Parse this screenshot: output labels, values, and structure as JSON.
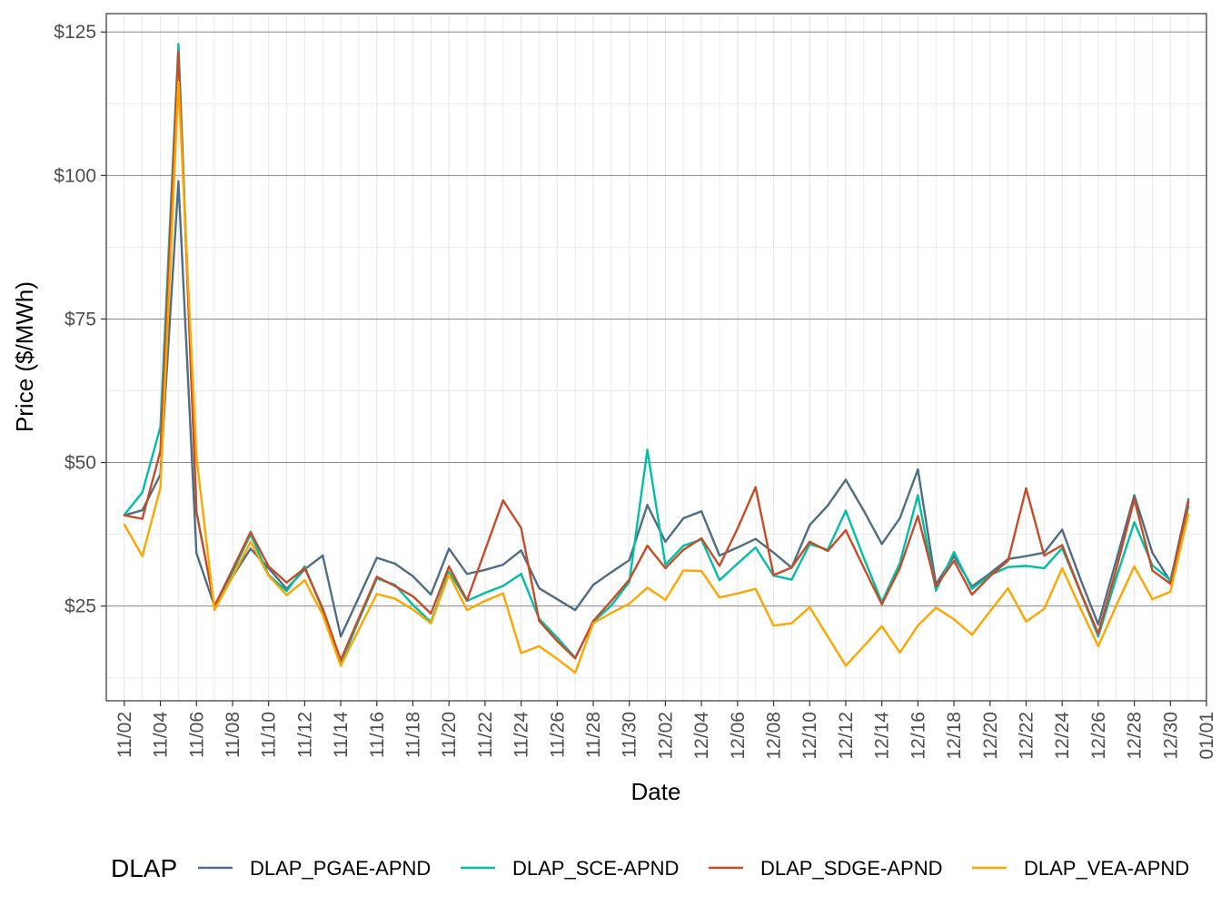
{
  "chart_data": {
    "type": "line",
    "xlabel": "Date",
    "ylabel": "Price ($/MWh)",
    "ylim": [
      8.5,
      128.2
    ],
    "y_ticks": [
      25,
      50,
      75,
      100,
      125
    ],
    "y_tick_labels": [
      "$25",
      "$50",
      "$75",
      "$100",
      "$125"
    ],
    "x_range": [
      "2020-11-01",
      "2021-01-01"
    ],
    "x_ticks": [
      "2020-11-02",
      "2020-11-04",
      "2020-11-06",
      "2020-11-08",
      "2020-11-10",
      "2020-11-12",
      "2020-11-14",
      "2020-11-16",
      "2020-11-18",
      "2020-11-20",
      "2020-11-22",
      "2020-11-24",
      "2020-11-26",
      "2020-11-28",
      "2020-11-30",
      "2020-12-02",
      "2020-12-04",
      "2020-12-06",
      "2020-12-08",
      "2020-12-10",
      "2020-12-12",
      "2020-12-14",
      "2020-12-16",
      "2020-12-18",
      "2020-12-20",
      "2020-12-22",
      "2020-12-24",
      "2020-12-26",
      "2020-12-28",
      "2020-12-30",
      "2021-01-01"
    ],
    "x_tick_labels": [
      "11/02",
      "11/04",
      "11/06",
      "11/08",
      "11/10",
      "11/12",
      "11/14",
      "11/16",
      "11/18",
      "11/20",
      "11/22",
      "11/24",
      "11/26",
      "11/28",
      "11/30",
      "12/02",
      "12/04",
      "12/06",
      "12/08",
      "12/10",
      "12/12",
      "12/14",
      "12/16",
      "12/18",
      "12/20",
      "12/22",
      "12/24",
      "12/26",
      "12/28",
      "12/30",
      "01/01"
    ],
    "grid": true,
    "legend_position": "bottom",
    "legend_title": "DLAP",
    "x": [
      "2020-11-02",
      "2020-11-03",
      "2020-11-04",
      "2020-11-05",
      "2020-11-06",
      "2020-11-07",
      "2020-11-08",
      "2020-11-09",
      "2020-11-10",
      "2020-11-11",
      "2020-11-12",
      "2020-11-13",
      "2020-11-14",
      "2020-11-15",
      "2020-11-16",
      "2020-11-17",
      "2020-11-18",
      "2020-11-19",
      "2020-11-20",
      "2020-11-21",
      "2020-11-22",
      "2020-11-23",
      "2020-11-24",
      "2020-11-25",
      "2020-11-26",
      "2020-11-27",
      "2020-11-28",
      "2020-11-29",
      "2020-11-30",
      "2020-12-01",
      "2020-12-02",
      "2020-12-03",
      "2020-12-04",
      "2020-12-05",
      "2020-12-06",
      "2020-12-07",
      "2020-12-08",
      "2020-12-09",
      "2020-12-10",
      "2020-12-11",
      "2020-12-12",
      "2020-12-13",
      "2020-12-14",
      "2020-12-15",
      "2020-12-16",
      "2020-12-17",
      "2020-12-18",
      "2020-12-19",
      "2020-12-20",
      "2020-12-21",
      "2020-12-22",
      "2020-12-23",
      "2020-12-24",
      "2020-12-25",
      "2020-12-26",
      "2020-12-27",
      "2020-12-28",
      "2020-12-29",
      "2020-12-30",
      "2020-12-31"
    ],
    "series": [
      {
        "name": "DLAP_PGAE-APND",
        "color": "#4e6e81",
        "values": [
          40.8,
          41.7,
          47.9,
          99.0,
          34.2,
          25.0,
          30.1,
          35.0,
          31.6,
          28.0,
          31.4,
          33.8,
          19.7,
          26.5,
          33.4,
          32.4,
          30.2,
          27.0,
          35.0,
          30.6,
          31.3,
          32.2,
          34.7,
          28.1,
          26.2,
          24.3,
          28.7,
          30.9,
          33.0,
          42.6,
          36.2,
          40.3,
          41.5,
          33.8,
          35.2,
          36.7,
          34.3,
          31.7,
          39.1,
          42.5,
          47.0,
          41.6,
          35.8,
          40.3,
          48.8,
          28.8,
          33.7,
          28.4,
          30.7,
          33.2,
          33.7,
          34.3,
          38.3,
          29.8,
          21.8,
          33.0,
          44.3,
          34.3,
          29.3,
          43.6
        ]
      },
      {
        "name": "DLAP_SCE-APND",
        "color": "#00bfa5",
        "values": [
          40.9,
          44.8,
          56.2,
          122.9,
          41.4,
          25.0,
          30.9,
          37.5,
          30.4,
          27.6,
          31.9,
          24.3,
          14.9,
          22.5,
          29.8,
          28.7,
          25.2,
          22.2,
          31.0,
          25.9,
          27.3,
          28.5,
          30.6,
          22.8,
          19.5,
          16.0,
          22.2,
          25.1,
          29.2,
          52.2,
          32.2,
          35.5,
          36.6,
          29.5,
          32.4,
          35.2,
          30.3,
          29.6,
          35.8,
          34.8,
          41.6,
          33.4,
          25.7,
          32.5,
          44.3,
          27.7,
          34.4,
          28.0,
          30.4,
          31.8,
          32.0,
          31.6,
          35.1,
          27.5,
          19.7,
          29.9,
          39.6,
          32.1,
          29.5,
          42.3
        ]
      },
      {
        "name": "DLAP_SDGE-APND",
        "color": "#c84b27",
        "values": [
          40.8,
          40.2,
          52.0,
          121.6,
          41.4,
          25.0,
          31.4,
          37.9,
          31.9,
          29.1,
          31.6,
          24.6,
          15.6,
          22.9,
          30.1,
          28.5,
          26.7,
          23.7,
          31.9,
          26.0,
          34.7,
          43.4,
          38.6,
          22.4,
          18.9,
          15.9,
          22.4,
          25.9,
          29.6,
          35.5,
          31.6,
          34.8,
          36.8,
          32.0,
          38.5,
          45.7,
          30.4,
          31.7,
          36.2,
          34.6,
          38.2,
          31.7,
          25.3,
          31.6,
          40.7,
          28.4,
          32.9,
          27.0,
          30.2,
          32.9,
          45.5,
          33.8,
          35.6,
          27.6,
          20.2,
          31.4,
          43.6,
          31.2,
          28.9,
          43.1
        ]
      },
      {
        "name": "DLAP_VEA-APND",
        "color": "#ffa500",
        "values": [
          39.2,
          33.7,
          45.6,
          116.3,
          51.0,
          24.3,
          30.1,
          36.2,
          30.3,
          26.9,
          29.5,
          23.5,
          14.6,
          20.9,
          27.1,
          26.3,
          24.4,
          22.0,
          30.5,
          24.3,
          25.9,
          27.2,
          16.8,
          18.0,
          15.8,
          13.4,
          22.0,
          23.8,
          25.4,
          28.2,
          26.1,
          31.2,
          31.1,
          26.5,
          27.2,
          28.0,
          21.6,
          22.0,
          24.8,
          19.7,
          14.6,
          18.0,
          21.5,
          16.9,
          21.6,
          24.7,
          22.7,
          20.0,
          24.1,
          28.1,
          22.3,
          24.5,
          31.6,
          24.7,
          18.0,
          25.1,
          31.9,
          26.2,
          27.5,
          41.0
        ]
      }
    ]
  }
}
